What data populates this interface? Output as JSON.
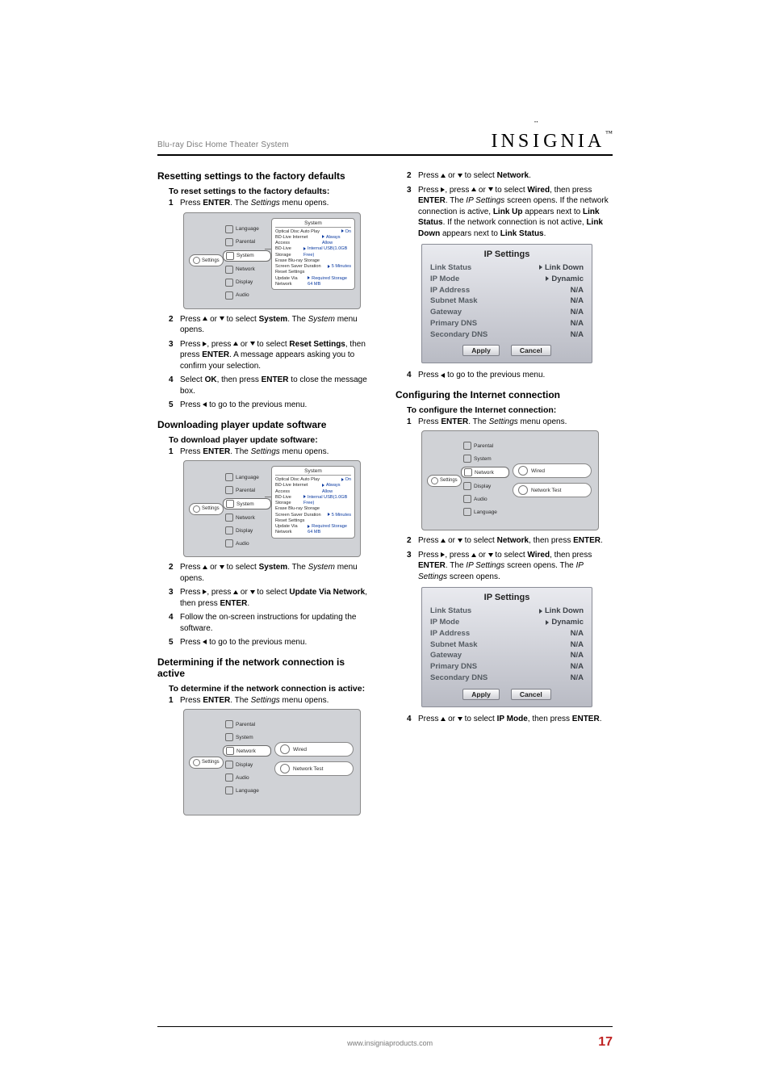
{
  "doc": {
    "product_line": "Blu-ray Disc Home Theater System",
    "brand": "INSIGNIA",
    "page_number": "17",
    "footer_url": "www.insigniaproducts.com"
  },
  "arrows": {
    "up": "▲",
    "down": "▼",
    "left": "◄",
    "right": "►"
  },
  "sections": {
    "reset": {
      "title": "Resetting settings to the factory defaults",
      "sub": "To reset settings to the factory defaults:",
      "steps": [
        {
          "n": "1",
          "pre": "Press ",
          "b1": "ENTER",
          "mid": ". The ",
          "i": "Settings",
          "post": " menu opens."
        },
        {
          "n": "2",
          "html": "Press <span class='tri up'></span> or <span class='tri down'></span> to select <b>System</b>. The <i>System</i> menu opens."
        },
        {
          "n": "3",
          "html": "Press <span class='tri right'></span>, press <span class='tri up'></span> or <span class='tri down'></span> to select <b>Reset Settings</b>, then press <b>ENTER</b>. A message appears asking you to confirm your selection."
        },
        {
          "n": "4",
          "html": "Select <b>OK</b>, then press <b>ENTER</b> to close the message box."
        },
        {
          "n": "5",
          "html": "Press <span class='tri left'></span> to go to the previous menu."
        }
      ]
    },
    "download": {
      "title": "Downloading player update software",
      "sub": "To download player update software:",
      "steps": [
        {
          "n": "1",
          "pre": "Press ",
          "b1": "ENTER",
          "mid": ". The ",
          "i": "Settings",
          "post": " menu opens."
        },
        {
          "n": "2",
          "html": "Press <span class='tri up'></span> or <span class='tri down'></span> to select <b>System</b>. The <i>System</i> menu opens."
        },
        {
          "n": "3",
          "html": "Press <span class='tri right'></span>, press <span class='tri up'></span> or <span class='tri down'></span> to select <b>Update Via Network</b>, then press <b>ENTER</b>."
        },
        {
          "n": "4",
          "html": "Follow the on-screen instructions for updating the software."
        },
        {
          "n": "5",
          "html": "Press <span class='tri left'></span> to go to the previous menu."
        }
      ]
    },
    "determine": {
      "title": "Determining if the network connection is active",
      "sub": "To determine if the network connection is active:",
      "steps": [
        {
          "n": "1",
          "pre": "Press ",
          "b1": "ENTER",
          "mid": ". The ",
          "i": "Settings",
          "post": " menu opens."
        }
      ]
    },
    "right_top_steps": [
      {
        "n": "2",
        "html": "Press <span class='tri up'></span> or <span class='tri down'></span> to select <b>Network</b>."
      },
      {
        "n": "3",
        "html": "Press <span class='tri right'></span>, press <span class='tri up'></span> or <span class='tri down'></span> to select <b>Wired</b>, then press <b>ENTER</b>. The <i>IP Settings</i> screen opens. If the network connection is active, <b>Link Up</b> appears next to <b>Link Status</b>. If the network connection is not active, <b>Link Down</b> appears next to <b>Link Status</b>."
      }
    ],
    "right_mid_step": {
      "n": "4",
      "html": "Press <span class='tri left'></span> to go to the previous menu."
    },
    "configure": {
      "title": "Configuring the Internet connection",
      "sub": "To configure the Internet connection:",
      "steps_a": [
        {
          "n": "1",
          "pre": "Press ",
          "b1": "ENTER",
          "mid": ". The ",
          "i": "Settings",
          "post": " menu opens."
        }
      ],
      "steps_b": [
        {
          "n": "2",
          "html": "Press <span class='tri up'></span> or <span class='tri down'></span> to select <b>Network</b>, then press <b>ENTER</b>."
        },
        {
          "n": "3",
          "html": "Press <span class='tri right'></span>, press <span class='tri up'></span> or <span class='tri down'></span> to select <b>Wired</b>, then press <b>ENTER</b>. The <i>IP Settings</i> screen opens. The <i>IP Settings</i> screen opens."
        }
      ],
      "steps_c": [
        {
          "n": "4",
          "html": "Press <span class='tri up'></span> or <span class='tri down'></span> to select <b>IP Mode</b>, then press <b>ENTER</b>."
        }
      ]
    }
  },
  "sys_menu": {
    "left_label": "Settings",
    "items": [
      "Language",
      "Parental",
      "System",
      "Network",
      "Display",
      "Audio"
    ],
    "selected": "System",
    "callout_title": "System",
    "callout_rows": [
      {
        "k": "Optical Disc Auto Play",
        "v": "On"
      },
      {
        "k": "BD-Live Internet Access",
        "v": "Always Allow"
      },
      {
        "k": "BD-Live Storage",
        "v": "Internal USB(1.0GB Free)"
      },
      {
        "k": "Erase Blu-ray Storage",
        "v": ""
      },
      {
        "k": "Screen Saver Duration",
        "v": "5 Minutes"
      },
      {
        "k": "Reset Settings",
        "v": ""
      },
      {
        "k": "Update Via Network",
        "v": "Required Storage 64 MB"
      }
    ]
  },
  "net_menu": {
    "left_label": "Settings",
    "items": [
      "Parental",
      "System",
      "Network",
      "Display",
      "Audio",
      "Language"
    ],
    "selected": "Network",
    "options": [
      "Wired",
      "Network Test"
    ]
  },
  "ip": {
    "title": "IP Settings",
    "rows": [
      {
        "k": "Link Status",
        "v": "Link Down",
        "arrow": true
      },
      {
        "k": "IP Mode",
        "v": "Dynamic",
        "arrow": true
      },
      {
        "k": "IP Address",
        "v": "N/A"
      },
      {
        "k": "Subnet Mask",
        "v": "N/A"
      },
      {
        "k": "Gateway",
        "v": "N/A"
      },
      {
        "k": "Primary DNS",
        "v": "N/A"
      },
      {
        "k": "Secondary DNS",
        "v": "N/A"
      }
    ],
    "apply": "Apply",
    "cancel": "Cancel"
  }
}
